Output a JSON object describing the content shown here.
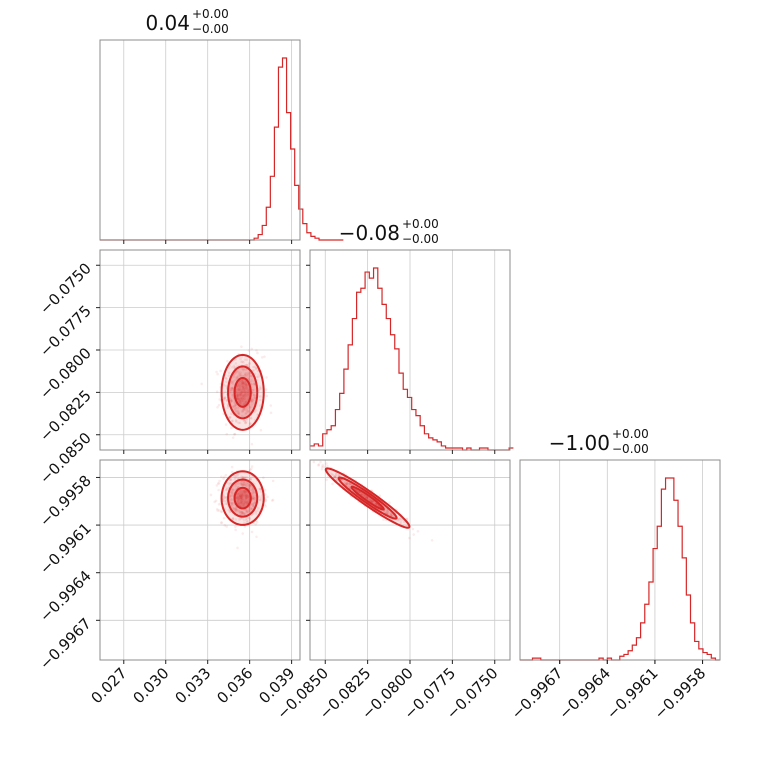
{
  "chart_data": {
    "type": "corner",
    "color": "#d62728",
    "parameters": [
      {
        "title_value": "0.04",
        "err_plus": "+0.00",
        "err_minus": "−0.00",
        "range": [
          0.0253,
          0.0396
        ],
        "ticks": [
          0.027,
          0.03,
          0.033,
          0.036,
          0.039
        ],
        "tick_labels": [
          "0.027",
          "0.030",
          "0.033",
          "0.036",
          "0.039"
        ],
        "hist": {
          "edges_start": 0.0253,
          "edges_step": 0.00029,
          "counts": [
            0,
            0,
            0,
            0,
            0,
            0,
            0,
            0,
            0,
            0,
            0,
            0,
            0,
            0,
            0,
            0,
            0,
            0,
            0,
            0,
            0,
            0,
            0,
            0,
            0,
            0,
            0,
            0,
            0,
            0,
            0,
            0,
            0,
            0,
            0,
            0,
            0,
            0,
            1,
            3,
            8,
            18,
            35,
            62,
            95,
            100,
            70,
            50,
            30,
            17,
            9,
            4,
            2,
            1,
            0,
            0,
            0,
            0,
            0,
            0
          ]
        }
      },
      {
        "title_value": "−0.08",
        "err_plus": "+0.00",
        "err_minus": "−0.00",
        "range": [
          -0.0859,
          -0.0741
        ],
        "ticks": [
          -0.085,
          -0.0825,
          -0.08,
          -0.0775,
          -0.075
        ],
        "tick_labels": [
          "−0.0850",
          "−0.0825",
          "−0.0800",
          "−0.0775",
          "−0.0750"
        ],
        "hist": {
          "edges_start": -0.0859,
          "edges_step": 0.00025,
          "counts": [
            2,
            3,
            2,
            8,
            10,
            12,
            20,
            28,
            40,
            52,
            65,
            78,
            80,
            88,
            85,
            90,
            80,
            72,
            65,
            57,
            50,
            38,
            30,
            26,
            20,
            17,
            12,
            8,
            6,
            5,
            4,
            2,
            1,
            1,
            1,
            1,
            0,
            1,
            0,
            0,
            1,
            1,
            0,
            0,
            0,
            0,
            0,
            1
          ]
        }
      },
      {
        "title_value": "−1.00",
        "err_plus": "+0.00",
        "err_minus": "−0.00",
        "range": [
          -0.99695,
          -0.99569
        ],
        "ticks": [
          -0.9967,
          -0.9964,
          -0.9961,
          -0.9958
        ],
        "tick_labels": [
          "−0.9967",
          "−0.9964",
          "−0.9961",
          "−0.9958"
        ],
        "hist": {
          "edges_start": -0.99695,
          "edges_step": 2.62e-05,
          "counts": [
            0,
            0,
            0,
            1,
            1,
            0,
            0,
            0,
            0,
            0,
            0,
            0,
            0,
            0,
            0,
            0,
            0,
            0,
            0,
            1,
            0,
            1,
            0,
            0,
            2,
            3,
            5,
            8,
            12,
            20,
            30,
            42,
            60,
            72,
            92,
            98,
            98,
            86,
            72,
            55,
            35,
            20,
            10,
            6,
            4,
            3,
            1,
            0
          ]
        }
      }
    ],
    "pairs": [
      {
        "row": 1,
        "col": 0,
        "center": [
          0.0355,
          -0.0825
        ],
        "sigma": [
          0.00058,
          0.00085
        ],
        "corr": 0.0,
        "n_scatter": 500
      },
      {
        "row": 2,
        "col": 0,
        "center": [
          0.0355,
          -0.99593
        ],
        "sigma": [
          0.00058,
          6.5e-05
        ],
        "corr": 0.0,
        "n_scatter": 500
      },
      {
        "row": 2,
        "col": 1,
        "center": [
          -0.0825,
          -0.99593
        ],
        "sigma": [
          0.00095,
          7.2e-05
        ],
        "corr": -0.96,
        "n_scatter": 500
      }
    ],
    "contour_levels_sigma": [
      1.0,
      1.8,
      2.6
    ]
  }
}
